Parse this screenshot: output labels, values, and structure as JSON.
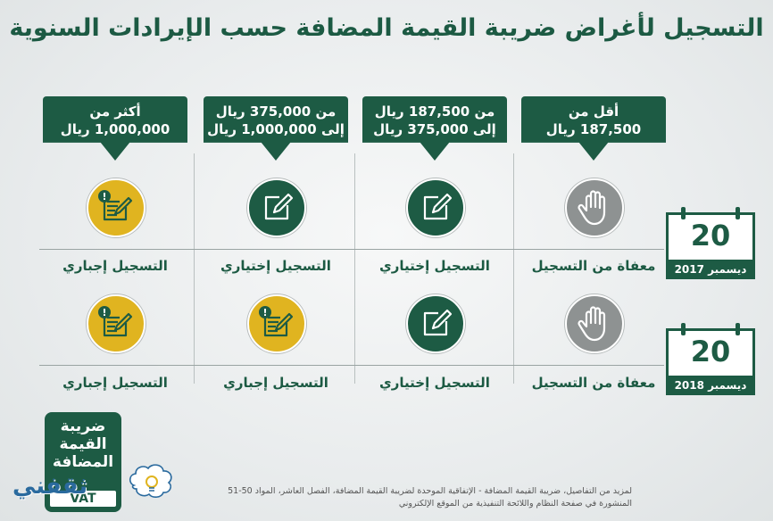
{
  "title": "التسجيل لأغراض ضريبة القيمة المضافة حسب الإيرادات السنوية",
  "tiers": [
    {
      "line1": "أقل من",
      "line2": "187,500 ريال"
    },
    {
      "line1": "من 187,500 ريال",
      "line2": "إلى 375,000 ريال"
    },
    {
      "line1": "من 375,000 ريال",
      "line2": "إلى 1,000,000 ريال"
    },
    {
      "line1": "أكثر من",
      "line2": "1,000,000 ريال"
    }
  ],
  "dates": [
    {
      "day": "20",
      "month": "ديسمبر 2017"
    },
    {
      "day": "20",
      "month": "ديسمبر 2018"
    }
  ],
  "rows": [
    {
      "labels": [
        "معفاة من التسجيل",
        "التسجيل إختياري",
        "التسجيل إختياري",
        "التسجيل إجباري"
      ],
      "icons": [
        "hand-icon",
        "pen-icon",
        "pen-icon",
        "alert-pen-icon"
      ],
      "colors": [
        "#8e9292",
        "#1d5b44",
        "#1d5b44",
        "#e0b420"
      ]
    },
    {
      "labels": [
        "معفاة من التسجيل",
        "التسجيل إختياري",
        "التسجيل إجباري",
        "التسجيل إجباري"
      ],
      "icons": [
        "hand-icon",
        "pen-icon",
        "alert-pen-icon",
        "alert-pen-icon"
      ],
      "colors": [
        "#8e9292",
        "#1d5b44",
        "#e0b420",
        "#e0b420"
      ]
    }
  ],
  "logo": {
    "line1": "ضريبة",
    "line2": "القيمة",
    "line3": "المضافة",
    "vat": "VAT"
  },
  "brand": "ثقفني",
  "footnote": {
    "line1": "لمزيد من التفاصيل، ضريبة القيمة المضافة - الإتفاقية الموحدة لضريبة القيمة المضافة، الفصل العاشر، المواد 50-51",
    "line2": "المنشورة في صفحة النظام واللائحة التنفيذية من الموقع الإلكتروني"
  }
}
